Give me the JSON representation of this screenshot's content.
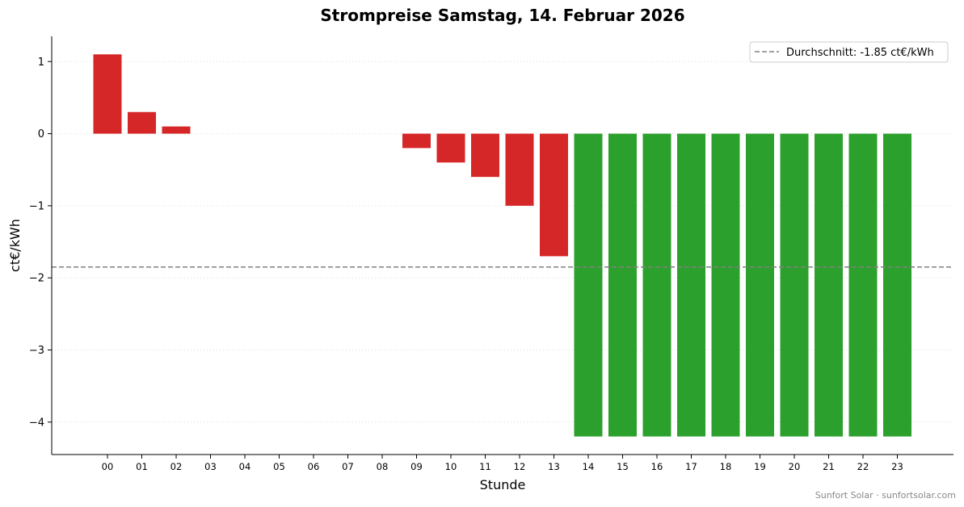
{
  "chart_data": {
    "type": "bar",
    "title": "Strompreise Samstag, 14. Februar 2026",
    "xlabel": "Stunde",
    "ylabel": "ct€/kWh",
    "categories": [
      "00",
      "01",
      "02",
      "03",
      "04",
      "05",
      "06",
      "07",
      "08",
      "09",
      "10",
      "11",
      "12",
      "13",
      "14",
      "15",
      "16",
      "17",
      "18",
      "19",
      "20",
      "21",
      "22",
      "23"
    ],
    "values": [
      1.1,
      0.3,
      0.1,
      0,
      0,
      0,
      0,
      0,
      0,
      -0.2,
      -0.4,
      -0.6,
      -1.0,
      -1.7,
      -4.2,
      -4.2,
      -4.2,
      -4.2,
      -4.2,
      -4.2,
      -4.2,
      -4.2,
      -4.2,
      -4.2
    ],
    "yticks": [
      1,
      0,
      -1,
      -2,
      -3,
      -4
    ],
    "ytick_labels": [
      "1",
      "0",
      "−1",
      "−2",
      "−3",
      "−4"
    ],
    "ylim": [
      -4.45,
      1.35
    ],
    "average": -1.85,
    "legend": {
      "label": "Durchschnitt: -1.85 ct€/kWh",
      "position": "top-right"
    },
    "grid": "horizontal-dotted",
    "colors": {
      "high": "#d62728",
      "low": "#2ca02c",
      "average_line": "#808080"
    },
    "footer": "Sunfort Solar · sunfortsolar.com"
  }
}
